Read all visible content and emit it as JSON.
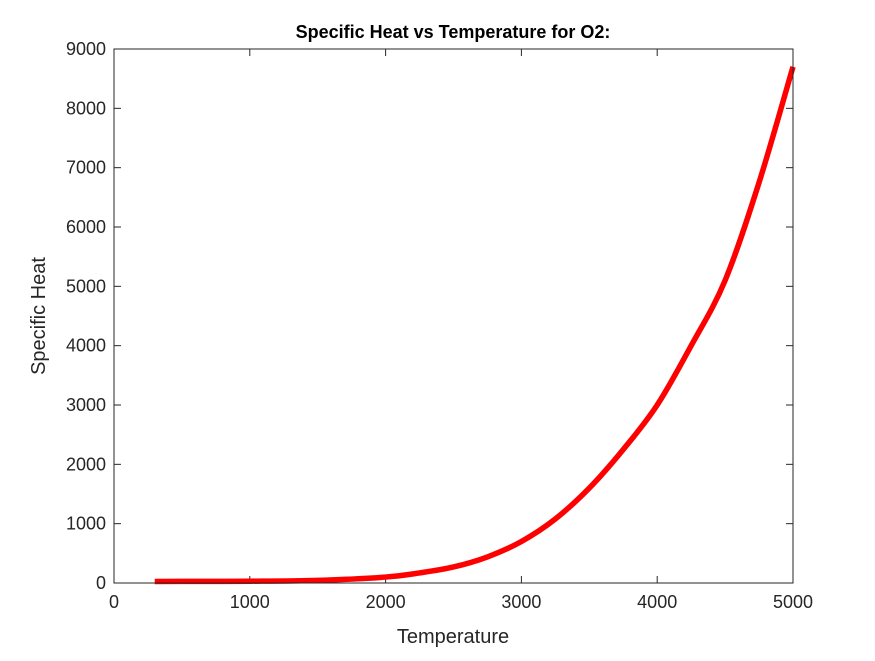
{
  "chart_data": {
    "type": "line",
    "title": "Specific Heat vs Temperature for O2:",
    "xlabel": "Temperature",
    "ylabel": "Specific Heat",
    "xlim": [
      0,
      5000
    ],
    "ylim": [
      0,
      9000
    ],
    "xticks": [
      0,
      1000,
      2000,
      3000,
      4000,
      5000
    ],
    "yticks": [
      0,
      1000,
      2000,
      3000,
      4000,
      5000,
      6000,
      7000,
      8000,
      9000
    ],
    "grid": false,
    "line_color": "#ff0000",
    "series": [
      {
        "x": [
          300,
          500,
          1000,
          1500,
          2000,
          2250,
          2500,
          2750,
          3000,
          3250,
          3500,
          3750,
          4000,
          4250,
          4500,
          4750,
          5000
        ],
        "y": [
          25,
          27,
          30,
          45,
          100,
          170,
          270,
          440,
          700,
          1080,
          1600,
          2250,
          3000,
          4000,
          5100,
          6750,
          8700
        ]
      }
    ]
  }
}
